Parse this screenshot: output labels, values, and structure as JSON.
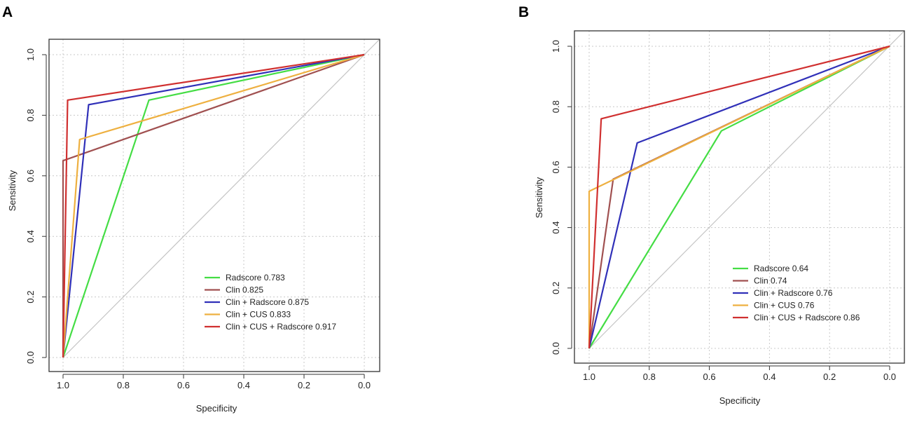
{
  "chart_data": [
    {
      "type": "line",
      "panel_label": "A",
      "xlabel": "Specificity",
      "ylabel": "Sensitivity",
      "xlim": [
        1.0,
        0.0
      ],
      "ylim": [
        0.0,
        1.0
      ],
      "x_ticks": [
        "1.0",
        "0.8",
        "0.6",
        "0.4",
        "0.2",
        "0.0"
      ],
      "y_ticks": [
        "0.0",
        "0.2",
        "0.4",
        "0.6",
        "0.8",
        "1.0"
      ],
      "grid": true,
      "reference_diagonal": true,
      "legend_position": "bottom-right",
      "series": [
        {
          "name": "Radscore",
          "auc": "0.783",
          "legend_label": "Radscore 0.783",
          "color": "#44dd44",
          "points": [
            [
              1.0,
              0.0
            ],
            [
              0.715,
              0.85
            ],
            [
              0.0,
              1.0
            ]
          ]
        },
        {
          "name": "Clin",
          "auc": "0.825",
          "legend_label": "Clin 0.825",
          "color": "#a05050",
          "points": [
            [
              1.0,
              0.0
            ],
            [
              1.0,
              0.65
            ],
            [
              0.0,
              1.0
            ]
          ]
        },
        {
          "name": "Clin + Radscore",
          "auc": "0.875",
          "legend_label": "Clin + Radscore  0.875",
          "color": "#3030b8",
          "points": [
            [
              1.0,
              0.0
            ],
            [
              0.915,
              0.835
            ],
            [
              0.0,
              1.0
            ]
          ]
        },
        {
          "name": "Clin + CUS",
          "auc": "0.833",
          "legend_label": "Clin + CUS  0.833",
          "color": "#eeb040",
          "points": [
            [
              1.0,
              0.0
            ],
            [
              0.945,
              0.72
            ],
            [
              0.0,
              1.0
            ]
          ]
        },
        {
          "name": "Clin + CUS + Radscore",
          "auc": "0.917",
          "legend_label": "Clin + CUS + Radscore 0.917",
          "color": "#d03030",
          "points": [
            [
              1.0,
              0.0
            ],
            [
              0.985,
              0.85
            ],
            [
              0.0,
              1.0
            ]
          ]
        }
      ]
    },
    {
      "type": "line",
      "panel_label": "B",
      "xlabel": "Specificity",
      "ylabel": "Sensitivity",
      "xlim": [
        1.0,
        0.0
      ],
      "ylim": [
        0.0,
        1.0
      ],
      "x_ticks": [
        "1.0",
        "0.8",
        "0.6",
        "0.4",
        "0.2",
        "0.0"
      ],
      "y_ticks": [
        "0.0",
        "0.2",
        "0.4",
        "0.6",
        "0.8",
        "1.0"
      ],
      "grid": true,
      "reference_diagonal": true,
      "legend_position": "bottom-right",
      "series": [
        {
          "name": "Radscore",
          "auc": "0.64",
          "legend_label": "Radscore 0.64",
          "color": "#44dd44",
          "points": [
            [
              1.0,
              0.0
            ],
            [
              0.56,
              0.72
            ],
            [
              0.0,
              1.0
            ]
          ]
        },
        {
          "name": "Clin",
          "auc": "0.74",
          "legend_label": "Clin 0.74",
          "color": "#a05050",
          "points": [
            [
              1.0,
              0.0
            ],
            [
              0.92,
              0.56
            ],
            [
              0.0,
              1.0
            ]
          ]
        },
        {
          "name": "Clin + Radscore",
          "auc": "0.76",
          "legend_label": "Clin + Radscore  0.76",
          "color": "#3030b8",
          "points": [
            [
              1.0,
              0.0
            ],
            [
              0.84,
              0.68
            ],
            [
              0.0,
              1.0
            ]
          ]
        },
        {
          "name": "Clin + CUS",
          "auc": "0.76",
          "legend_label": "Clin + CUS  0.76",
          "color": "#eeb040",
          "points": [
            [
              1.0,
              0.0
            ],
            [
              1.0,
              0.52
            ],
            [
              0.0,
              1.0
            ]
          ]
        },
        {
          "name": "Clin + CUS + Radscore",
          "auc": "0.86",
          "legend_label": "Clin + CUS + Radscore 0.86",
          "color": "#d03030",
          "points": [
            [
              1.0,
              0.0
            ],
            [
              0.96,
              0.76
            ],
            [
              0.0,
              1.0
            ]
          ]
        }
      ]
    }
  ]
}
